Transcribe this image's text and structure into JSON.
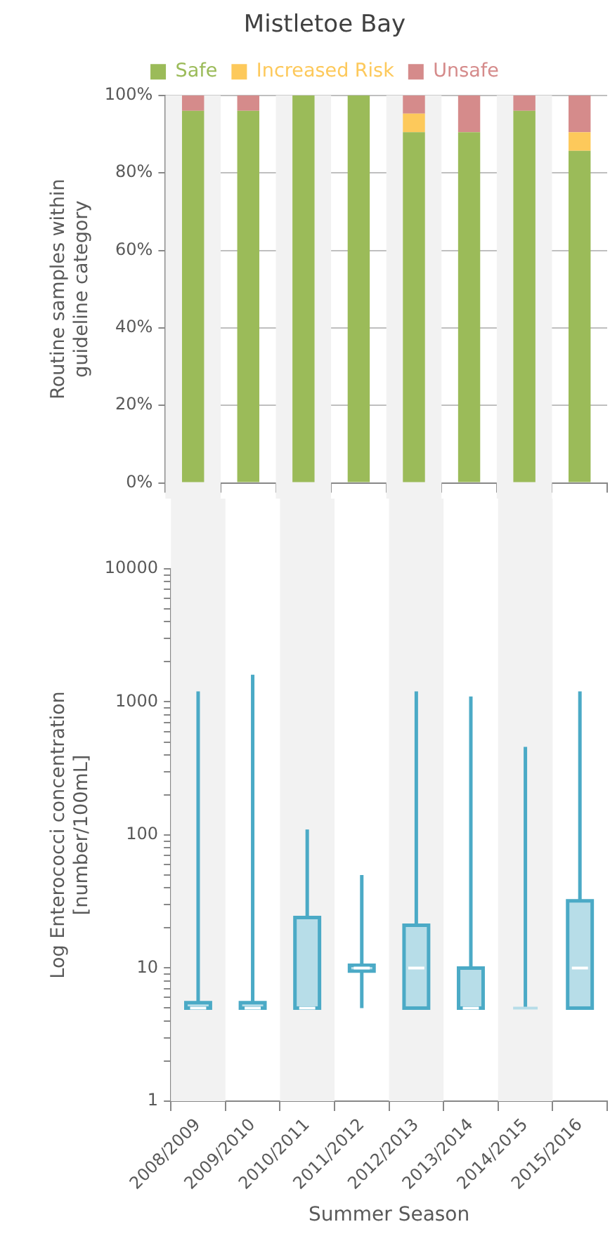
{
  "chart_data": [
    {
      "type": "bar",
      "title": "Mistletoe Bay",
      "ylabel": "Routine samples within guideline category",
      "stacked": true,
      "legend": "top",
      "grid": "y",
      "tick_labels": "y",
      "categories": [
        "2008/2009",
        "2009/2010",
        "2010/2011",
        "2011/2012",
        "2012/2013",
        "2013/2014",
        "2014/2015",
        "2015/2016"
      ],
      "series": [
        {
          "name": "Safe",
          "color": "#9bbb59",
          "values": [
            96,
            96,
            100,
            100,
            90.5,
            90.5,
            96,
            85.7
          ]
        },
        {
          "name": "Increased Risk",
          "color": "#fdc95b",
          "values": [
            0,
            0,
            0,
            0,
            4.8,
            0,
            0,
            4.8
          ]
        },
        {
          "name": "Unsafe",
          "color": "#d58b8b",
          "values": [
            4,
            4,
            0,
            0,
            4.7,
            9.5,
            4,
            9.5
          ]
        }
      ],
      "ylim": [
        0,
        100
      ],
      "yticks": [
        {
          "value": 0,
          "label": "0%"
        },
        {
          "value": 20,
          "label": "20%"
        },
        {
          "value": 40,
          "label": "40%"
        },
        {
          "value": 60,
          "label": "60%"
        },
        {
          "value": 80,
          "label": "80%"
        },
        {
          "value": 100,
          "label": "100%"
        }
      ],
      "bands": [
        {
          "axis": "x",
          "from": "2008/2009",
          "to": "2008/2009",
          "color": "#f2f2f2"
        },
        {
          "axis": "x",
          "from": "2010/2011",
          "to": "2010/2011",
          "color": "#f2f2f2"
        },
        {
          "axis": "x",
          "from": "2012/2013",
          "to": "2012/2013",
          "color": "#f2f2f2"
        },
        {
          "axis": "x",
          "from": "2014/2015",
          "to": "2014/2015",
          "color": "#f2f2f2"
        }
      ]
    },
    {
      "type": "box",
      "xlabel": "Summer Season",
      "ylabel": "Log Enterococci concentration [number/100mL]",
      "log": true,
      "legend": false,
      "grid": false,
      "categories": [
        "2008/2009",
        "2009/2010",
        "2010/2011",
        "2011/2012",
        "2012/2013",
        "2013/2014",
        "2014/2015",
        "2015/2016"
      ],
      "color": "#b7dde8",
      "boxes": [
        {
          "low": 5,
          "q1": 5,
          "median": 5,
          "q3": 5.5,
          "high": 1200
        },
        {
          "low": 5,
          "q1": 5,
          "median": 5,
          "q3": 5.5,
          "high": 1600
        },
        {
          "low": 5,
          "q1": 5,
          "median": 5,
          "q3": 24,
          "high": 110
        },
        {
          "low": 5,
          "q1": 9.5,
          "median": 10,
          "q3": 10.5,
          "high": 50
        },
        {
          "low": 5,
          "q1": 5,
          "median": 10,
          "q3": 21,
          "high": 1200
        },
        {
          "low": 5,
          "q1": 5,
          "median": 5,
          "q3": 10,
          "high": 1100
        },
        {
          "low": 5,
          "q1": 5,
          "median": 5,
          "q3": 5,
          "high": 460
        },
        {
          "low": 5,
          "q1": 5,
          "median": 10,
          "q3": 32,
          "high": 1200
        }
      ],
      "ylim": [
        1,
        10000
      ],
      "yticks": [
        1,
        {
          "value": 2,
          "label": null
        },
        {
          "value": 3,
          "label": null
        },
        {
          "value": 4,
          "label": null
        },
        {
          "value": 5,
          "label": null
        },
        {
          "value": 6,
          "label": null
        },
        {
          "value": 7,
          "label": null
        },
        {
          "value": 8,
          "label": null
        },
        {
          "value": 9,
          "label": null
        },
        10,
        {
          "value": 20,
          "label": null
        },
        {
          "value": 30,
          "label": null
        },
        {
          "value": 40,
          "label": null
        },
        {
          "value": 50,
          "label": null
        },
        {
          "value": 60,
          "label": null
        },
        {
          "value": 70,
          "label": null
        },
        {
          "value": 80,
          "label": null
        },
        {
          "value": 90,
          "label": null
        },
        100,
        {
          "value": 200,
          "label": null
        },
        {
          "value": 300,
          "label": null
        },
        {
          "value": 400,
          "label": null
        },
        {
          "value": 500,
          "label": null
        },
        {
          "value": 600,
          "label": null
        },
        {
          "value": 700,
          "label": null
        },
        {
          "value": 800,
          "label": null
        },
        {
          "value": 900,
          "label": null
        },
        1000,
        {
          "value": 2000,
          "label": null
        },
        {
          "value": 3000,
          "label": null
        },
        {
          "value": 4000,
          "label": null
        },
        {
          "value": 5000,
          "label": null
        },
        {
          "value": 6000,
          "label": null
        },
        {
          "value": 7000,
          "label": null
        },
        {
          "value": 8000,
          "label": null
        },
        {
          "value": 9000,
          "label": null
        },
        10000
      ],
      "bands": [
        {
          "axis": "x",
          "from": "2008/2009",
          "to": "2008/2009",
          "color": "#f2f2f2"
        },
        {
          "axis": "x",
          "from": "2010/2011",
          "to": "2010/2011",
          "color": "#f2f2f2"
        },
        {
          "axis": "x",
          "from": "2012/2013",
          "to": "2012/2013",
          "color": "#f2f2f2"
        },
        {
          "axis": "x",
          "from": "2014/2015",
          "to": "2014/2015",
          "color": "#f2f2f2"
        }
      ]
    }
  ]
}
